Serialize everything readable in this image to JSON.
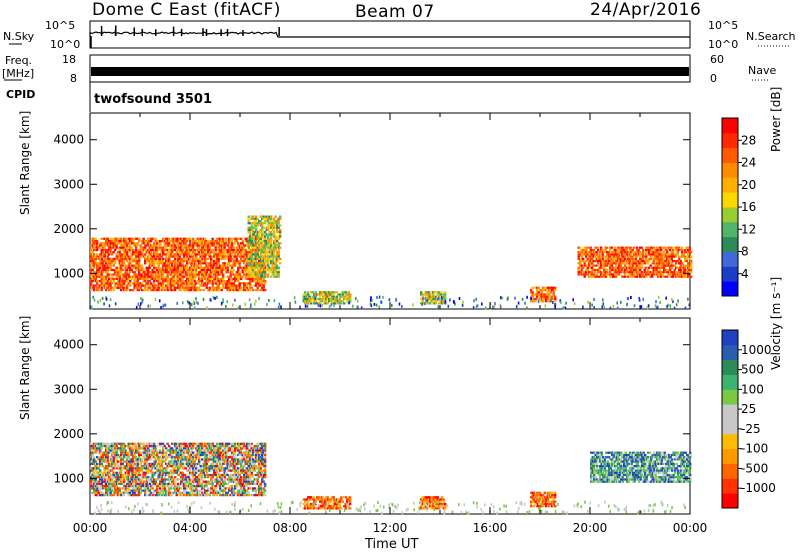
{
  "header": {
    "title": "Dome C East (fitACF)",
    "beam": "Beam 07",
    "date": "24/Apr/2016"
  },
  "panels": {
    "nsky_label": "N.Sky",
    "nsearch_label": "N.Search",
    "freq_label_line1": "Freq.",
    "freq_label_line2": "[MHz]",
    "nave_label": "Nave",
    "cpid_label": "CPID",
    "cpid_value": "twofsound 3501",
    "nsky_ticks": [
      "10^5",
      "10^0"
    ],
    "nsearch_ticks": [
      "10^5",
      "10^0"
    ],
    "freq_ticks": [
      "18",
      "8"
    ],
    "nave_ticks": [
      "60",
      "0"
    ]
  },
  "colors": {
    "power": [
      "#0000ff",
      "#1a3ec4",
      "#3f6ad8",
      "#2e8b57",
      "#52b36b",
      "#9acd32",
      "#ffd700",
      "#ffb000",
      "#ff8c00",
      "#ff5a00",
      "#ff2a00",
      "#ff0000"
    ],
    "velocity": [
      "#ff0000",
      "#ff3300",
      "#ff6600",
      "#ff9900",
      "#ffbb00",
      "#c8c8c8",
      "#c8c8c8",
      "#7ac943",
      "#3cb371",
      "#2e8b57",
      "#2a5db0",
      "#2040c0"
    ]
  },
  "chart_data": [
    {
      "type": "heatmap",
      "name": "power",
      "xlabel": "Time UT",
      "ylabel": "Slant Range [km]",
      "ylim": [
        200,
        4600
      ],
      "yticks": [
        "1000",
        "2000",
        "3000",
        "4000"
      ],
      "xticks": [
        "00:00",
        "04:00",
        "08:00",
        "12:00",
        "16:00",
        "20:00",
        "00:00"
      ],
      "colorbar_label": "Power [dB]",
      "colorbar_ticks": [
        "4",
        "8",
        "12",
        "16",
        "20",
        "24",
        "28"
      ],
      "colorbar_range": [
        0,
        30
      ],
      "blobs": [
        {
          "t0": 0.0,
          "t1": 7.0,
          "r0": 600,
          "r1": 1800,
          "level": "high"
        },
        {
          "t0": 6.3,
          "t1": 7.6,
          "r0": 900,
          "r1": 2300,
          "level": "mid"
        },
        {
          "t0": 8.5,
          "t1": 10.4,
          "r0": 300,
          "r1": 600,
          "level": "mid"
        },
        {
          "t0": 13.2,
          "t1": 14.2,
          "r0": 300,
          "r1": 600,
          "level": "mid"
        },
        {
          "t0": 17.6,
          "t1": 18.6,
          "r0": 350,
          "r1": 700,
          "level": "high"
        },
        {
          "t0": 19.5,
          "t1": 24.0,
          "r0": 900,
          "r1": 1600,
          "level": "high"
        }
      ]
    },
    {
      "type": "heatmap",
      "name": "velocity",
      "xlabel": "Time UT",
      "ylabel": "Slant Range [km]",
      "ylim": [
        200,
        4600
      ],
      "yticks": [
        "1000",
        "2000",
        "3000",
        "4000"
      ],
      "xticks": [
        "00:00",
        "04:00",
        "08:00",
        "12:00",
        "16:00",
        "20:00",
        "00:00"
      ],
      "colorbar_label": "Velocity [m s⁻¹]",
      "colorbar_ticks": [
        "-1000",
        "-500",
        "-100",
        "-25",
        "25",
        "100",
        "500",
        "1000"
      ],
      "blobs": [
        {
          "t0": 0.0,
          "t1": 7.0,
          "r0": 600,
          "r1": 1800,
          "level": "mix"
        },
        {
          "t0": 8.5,
          "t1": 10.4,
          "r0": 300,
          "r1": 600,
          "level": "neg"
        },
        {
          "t0": 13.2,
          "t1": 14.2,
          "r0": 300,
          "r1": 600,
          "level": "neg"
        },
        {
          "t0": 17.6,
          "t1": 18.6,
          "r0": 350,
          "r1": 700,
          "level": "neg"
        },
        {
          "t0": 20.0,
          "t1": 24.0,
          "r0": 900,
          "r1": 1600,
          "level": "pos"
        }
      ]
    }
  ]
}
